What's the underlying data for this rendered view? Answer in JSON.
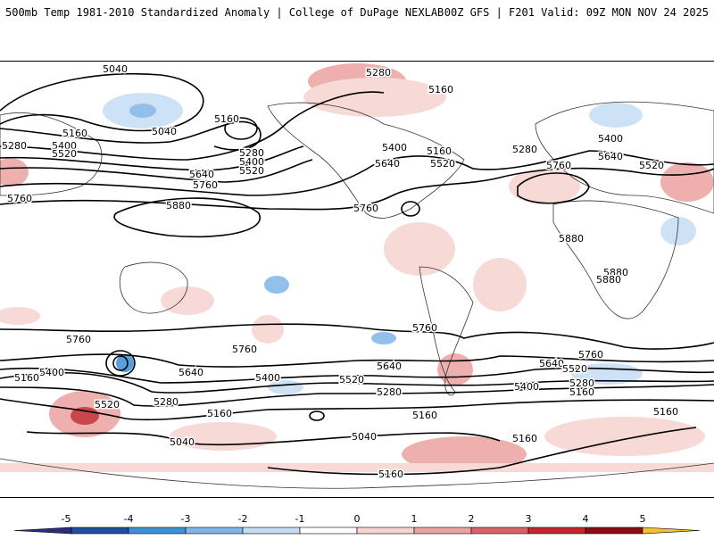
{
  "header": {
    "title_left": "500mb Temp 1981-2010 Standardized Anomaly | College of DuPage NEXLAB",
    "title_right": "00Z GFS | F201 Valid: 09Z MON NOV 24 2025"
  },
  "map": {
    "contour_color": "#000000",
    "land_outline_color": "#333333",
    "contour_labels": [
      "5040",
      "5280",
      "5160",
      "5160",
      "5040",
      "5160",
      "5280",
      "5400",
      "5520",
      "5280",
      "5400",
      "5520",
      "5640",
      "5760",
      "5880",
      "5160",
      "5400",
      "5640",
      "5520",
      "5280",
      "5760",
      "5760",
      "5640",
      "5520",
      "5400",
      "5760",
      "5880",
      "5880",
      "5880",
      "5760",
      "5760",
      "5760",
      "5640",
      "5400",
      "5160",
      "5520",
      "5280",
      "5160",
      "5040",
      "5640",
      "5520",
      "5400",
      "5280",
      "5160",
      "5040",
      "5160",
      "5760",
      "5640",
      "5520",
      "5400",
      "5280",
      "5160",
      "5160",
      "5160"
    ]
  },
  "colorbar": {
    "ticks": [
      "-5",
      "-4",
      "-3",
      "-2",
      "-1",
      "0",
      "1",
      "2",
      "3",
      "4",
      "5"
    ],
    "colors": [
      "#2b2f7a",
      "#1f4f9e",
      "#3d8fd6",
      "#7fb6e8",
      "#c5ddf3",
      "#ffffff",
      "#f6d3d0",
      "#eba3a0",
      "#d96266",
      "#c0282b",
      "#8c0a12",
      "#f2c22e"
    ]
  }
}
